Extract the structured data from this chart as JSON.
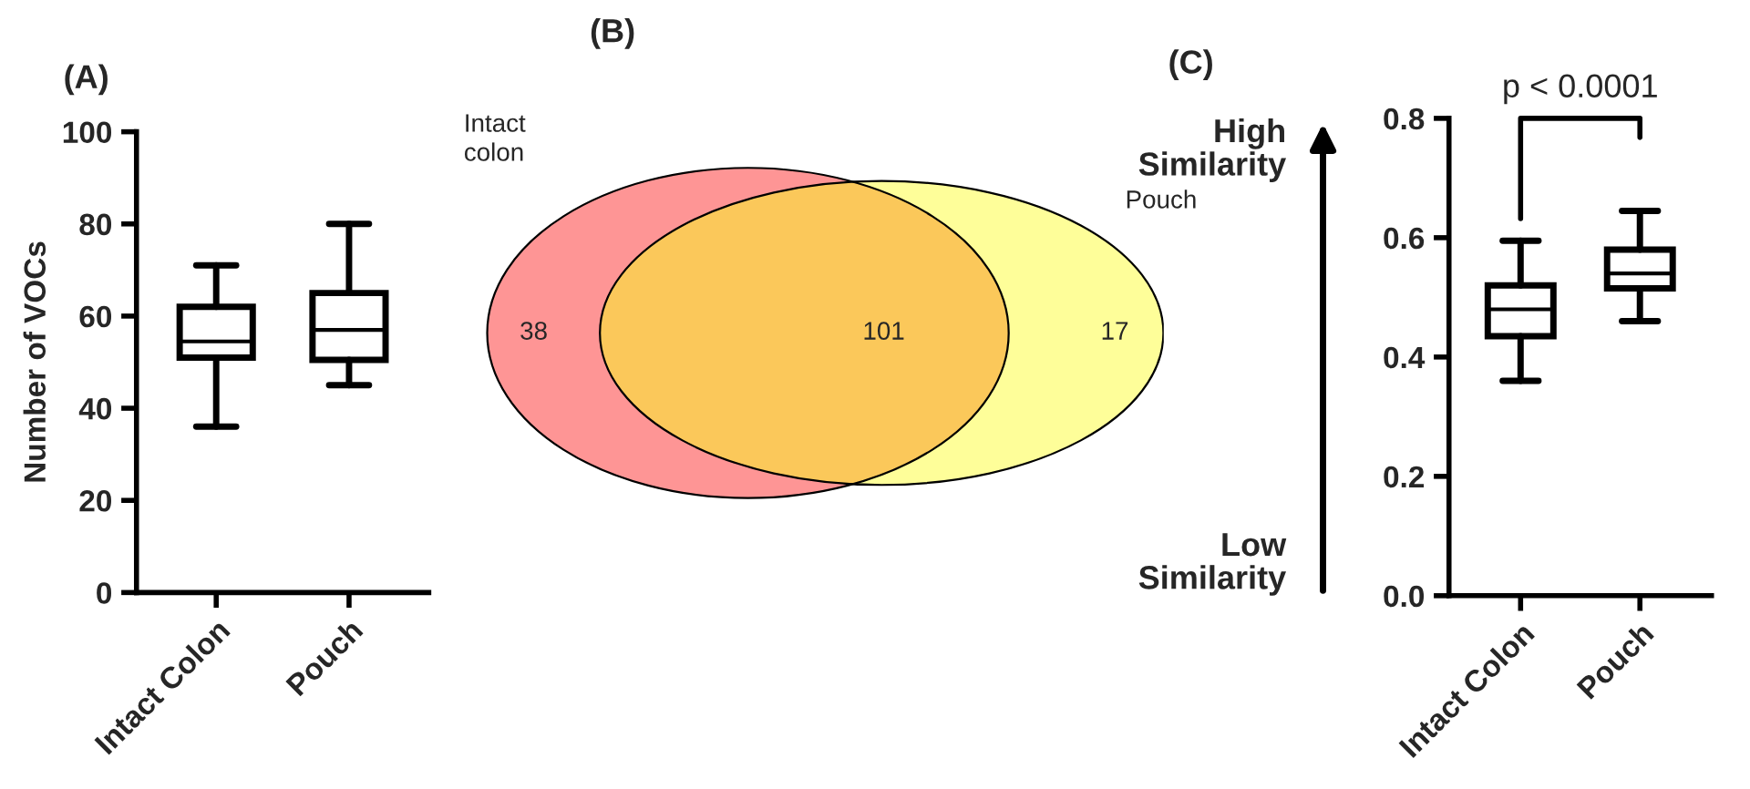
{
  "chart_data": [
    {
      "type": "box",
      "title": "(A)",
      "ylabel": "Number of VOCs",
      "categories": [
        "Intact Colon",
        "Pouch"
      ],
      "ylim": [
        0,
        100
      ],
      "yticks": [
        0,
        20,
        40,
        60,
        80,
        100
      ],
      "grid": false,
      "legend": false,
      "boxes": [
        {
          "low": 36,
          "q1": 51,
          "median": 54.5,
          "q3": 62,
          "high": 71
        },
        {
          "low": 45,
          "q1": 50.5,
          "median": 57,
          "q3": 65,
          "high": 80
        }
      ]
    },
    {
      "type": "other",
      "title": "(B)",
      "categories": [
        null,
        null,
        null
      ],
      "values": [
        38,
        101,
        17
      ],
      "colors": [
        "#fe9595",
        "#fbc85a",
        "#fefe99"
      ],
      "data_labels": true,
      "annotations": [
        "Intact\ncolon",
        "Pouch"
      ]
    },
    {
      "type": "box",
      "title": "(C)",
      "categories": [
        "Intact Colon",
        "Pouch"
      ],
      "ylim": [
        0,
        0.8
      ],
      "yticks": [
        {
          "value": 0,
          "label": "0.0"
        },
        0.2,
        0.4,
        0.6,
        0.8
      ],
      "grid": false,
      "legend": false,
      "boxes": [
        {
          "low": 0.36,
          "q1": 0.435,
          "median": 0.48,
          "q3": 0.52,
          "high": 0.595
        },
        {
          "low": 0.46,
          "q1": 0.515,
          "median": 0.54,
          "q3": 0.58,
          "high": 0.645
        }
      ],
      "annotations": [
        "High\nSimilarity",
        "Low\nSimilarity",
        "p < 0.0001"
      ]
    }
  ]
}
